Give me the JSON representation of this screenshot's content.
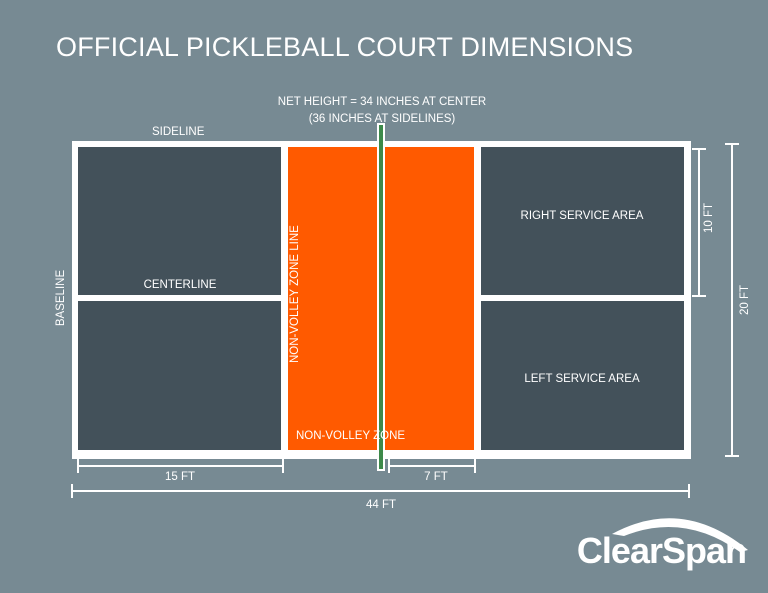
{
  "title": "OFFICIAL PICKLEBALL COURT DIMENSIONS",
  "labels": {
    "net_height_1": "NET HEIGHT = 34 INCHES AT CENTER",
    "net_height_2": "(36 INCHES AT SIDELINES)",
    "sideline": "SIDELINE",
    "baseline": "BASELINE",
    "centerline": "CENTERLINE",
    "non_volley_zone_line": "NON-VOLLEY ZONE LINE",
    "non_volley_zone": "NON-VOLLEY ZONE",
    "right_service_area": "RIGHT SERVICE AREA",
    "left_service_area": "LEFT SERVICE AREA"
  },
  "dimensions": {
    "half_width": "10 FT",
    "full_width": "20 FT",
    "service_length": "15 FT",
    "kitchen_length": "7 FT",
    "full_length": "44 FT"
  },
  "brand": {
    "name": "ClearSpan"
  },
  "colors": {
    "background": "#778a93",
    "service_area": "#43515a",
    "non_volley_zone": "#ff5a00",
    "net": "#3d8a4a",
    "lines": "#ffffff"
  }
}
